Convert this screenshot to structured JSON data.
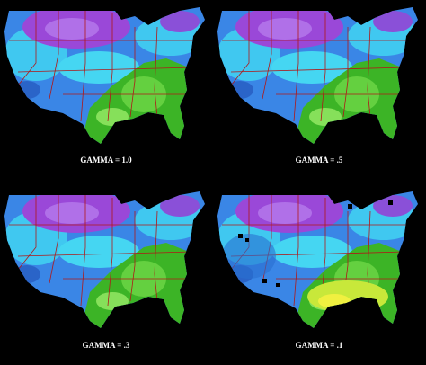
{
  "panels": [
    {
      "caption": "GAMMA = 1.0"
    },
    {
      "caption": "GAMMA = .5"
    },
    {
      "caption": "GAMMA = .3"
    },
    {
      "caption": "GAMMA = .1"
    }
  ]
}
